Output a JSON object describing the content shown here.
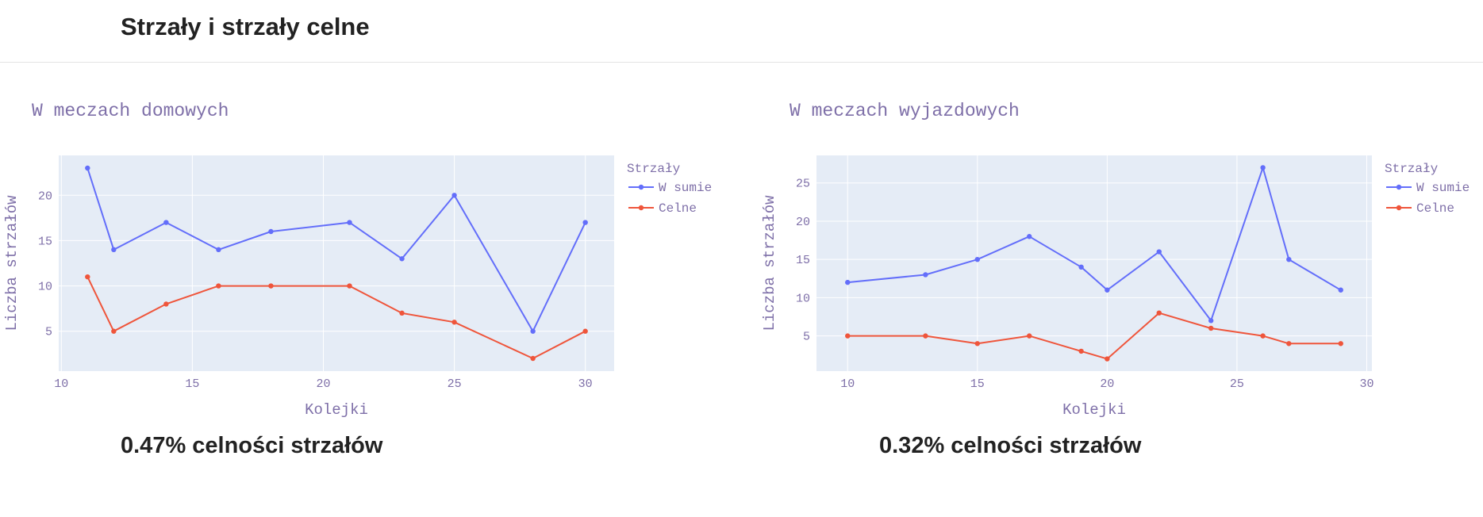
{
  "page": {
    "title": "Strzały i strzały celne"
  },
  "colors": {
    "series_total": "#636efa",
    "series_on_target": "#ef553b",
    "plot_bg": "#e5ecf6",
    "text": "#7e6fa8"
  },
  "chart_data": [
    {
      "id": "home",
      "type": "line",
      "title": "W meczach domowych",
      "xlabel": "Kolejki",
      "ylabel": "Liczba strzałów",
      "xlim": [
        9.9,
        31.1
      ],
      "ylim": [
        0.6,
        24.4
      ],
      "xticks": [
        10,
        15,
        20,
        25,
        30
      ],
      "yticks": [
        5,
        10,
        15,
        20
      ],
      "grid": true,
      "legend": {
        "title": "Strzały",
        "placement": "right"
      },
      "series": [
        {
          "name": "W sumie",
          "color": "#636efa",
          "x": [
            11,
            12,
            14,
            16,
            18,
            21,
            23,
            25,
            28,
            30
          ],
          "y": [
            23,
            14,
            17,
            14,
            16,
            17,
            13,
            20,
            5,
            17
          ]
        },
        {
          "name": "Celne",
          "color": "#ef553b",
          "x": [
            11,
            12,
            14,
            16,
            18,
            21,
            23,
            25,
            28,
            30
          ],
          "y": [
            11,
            5,
            8,
            10,
            10,
            10,
            7,
            6,
            2,
            5
          ]
        }
      ]
    },
    {
      "id": "away",
      "type": "line",
      "title": "W meczach wyjazdowych",
      "xlabel": "Kolejki",
      "ylabel": "Liczba strzałów",
      "xlim": [
        8.8,
        30.2
      ],
      "ylim": [
        0.4,
        28.6
      ],
      "xticks": [
        10,
        15,
        20,
        25,
        30
      ],
      "yticks": [
        5,
        10,
        15,
        20,
        25
      ],
      "grid": true,
      "legend": {
        "title": "Strzały",
        "placement": "right"
      },
      "series": [
        {
          "name": "W sumie",
          "color": "#636efa",
          "x": [
            10,
            13,
            15,
            17,
            19,
            20,
            22,
            24,
            26,
            27,
            29
          ],
          "y": [
            12,
            13,
            15,
            18,
            14,
            11,
            16,
            7,
            27,
            15,
            11
          ]
        },
        {
          "name": "Celne",
          "color": "#ef553b",
          "x": [
            10,
            13,
            15,
            17,
            19,
            20,
            22,
            24,
            26,
            27,
            29
          ],
          "y": [
            5,
            5,
            4,
            5,
            3,
            2,
            8,
            6,
            5,
            4,
            4
          ]
        }
      ]
    }
  ],
  "summary": {
    "home_accuracy": "0.47% celności strzałów",
    "away_accuracy": "0.32% celności strzałów"
  }
}
